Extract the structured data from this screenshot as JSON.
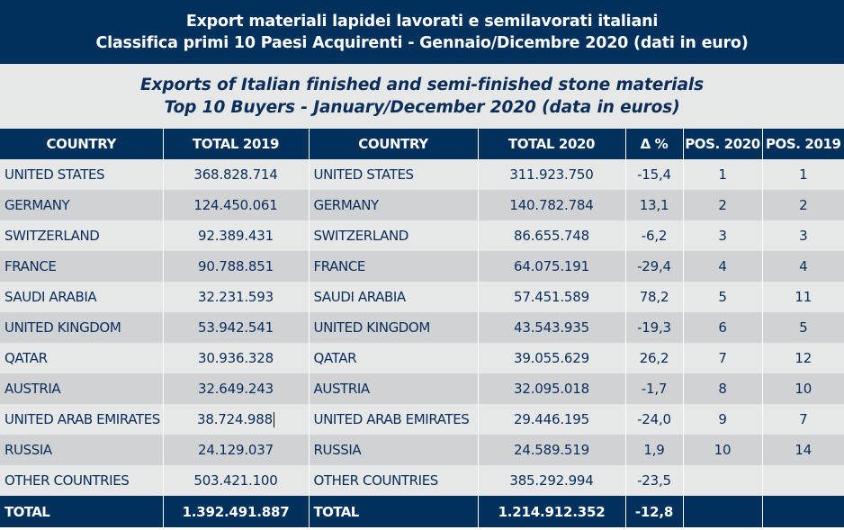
{
  "title": {
    "line1": "Export materiali lapidei lavorati e semilavorati italiani",
    "line2": "Classifica primi 10 Paesi Acquirenti - Gennaio/Dicembre 2020 (dati in euro)"
  },
  "subtitle": {
    "line1": "Exports of Italian finished and semi-finished stone materials",
    "line2": "Top 10 Buyers - January/December 2020 (data in euros)"
  },
  "colors": {
    "header_bg": "#00305c",
    "row_light": "#e6e7e7",
    "row_dark": "#d1d2d4",
    "text": "#0a2d5a"
  },
  "table": {
    "columns": [
      "COUNTRY",
      "TOTAL 2019",
      "COUNTRY",
      "TOTAL 2020",
      "Δ %",
      "POS. 2020",
      "POS. 2019"
    ],
    "rows": [
      [
        "UNITED STATES",
        "368.828.714",
        "UNITED STATES",
        "311.923.750",
        "-15,4",
        "1",
        "1"
      ],
      [
        "GERMANY",
        "124.450.061",
        "GERMANY",
        "140.782.784",
        "13,1",
        "2",
        "2"
      ],
      [
        "SWITZERLAND",
        "92.389.431",
        "SWITZERLAND",
        "86.655.748",
        "-6,2",
        "3",
        "3"
      ],
      [
        "FRANCE",
        "90.788.851",
        "FRANCE",
        "64.075.191",
        "-29,4",
        "4",
        "4"
      ],
      [
        "SAUDI ARABIA",
        "32.231.593",
        "SAUDI ARABIA",
        "57.451.589",
        "78,2",
        "5",
        "11"
      ],
      [
        "UNITED KINGDOM",
        "53.942.541",
        "UNITED KINGDOM",
        "43.543.935",
        "-19,3",
        "6",
        "5"
      ],
      [
        "QATAR",
        "30.936.328",
        "QATAR",
        "39.055.629",
        "26,2",
        "7",
        "12"
      ],
      [
        "AUSTRIA",
        "32.649.243",
        "AUSTRIA",
        "32.095.018",
        "-1,7",
        "8",
        "10"
      ],
      [
        "UNITED ARAB EMIRATES",
        "38.724.988",
        "UNITED ARAB EMIRATES",
        "29.446.195",
        "-24,0",
        "9",
        "7"
      ],
      [
        "RUSSIA",
        "24.129.037",
        "RUSSIA",
        "24.589.519",
        "1,9",
        "10",
        "14"
      ],
      [
        "OTHER COUNTRIES",
        "503.421.100",
        "OTHER COUNTRIES",
        "385.292.994",
        "-23,5",
        "",
        ""
      ]
    ],
    "total": [
      "TOTAL",
      "1.392.491.887",
      "TOTAL",
      "1.214.912.352",
      "-12,8",
      "",
      ""
    ]
  }
}
